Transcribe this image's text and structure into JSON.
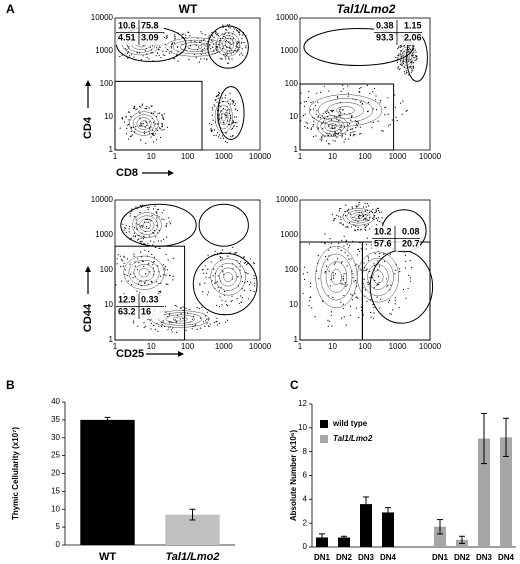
{
  "figure": {
    "panel_labels": [
      "A",
      "B",
      "C"
    ],
    "column_titles": [
      "WT",
      "Tal1/Lmo2"
    ],
    "flow_axis_labels": {
      "top_y": "CD4",
      "top_x": "CD8",
      "bottom_y": "CD44",
      "bottom_x": "CD25"
    },
    "flow_ticks": [
      1,
      10,
      100,
      1000,
      10000
    ],
    "flow_quadrants": [
      [
        10.6,
        75.8,
        4.51,
        3.09
      ],
      [
        0.38,
        1.15,
        93.3,
        2.06
      ],
      [
        12.9,
        0.33,
        63.2,
        16
      ],
      [
        10.2,
        0.08,
        57.6,
        20.7
      ]
    ]
  },
  "chart_data": [
    {
      "type": "bar",
      "ylabel": "Thymic Cellularity (x10⁷)",
      "categories": [
        "WT",
        "Tal1/Lmo2"
      ],
      "values": [
        35,
        8.5
      ],
      "errors": [
        0.7,
        1.5
      ],
      "colors": [
        "#000000",
        "#c0c0c0"
      ],
      "ylim": [
        0,
        40
      ],
      "yticks": [
        0,
        5,
        10,
        15,
        20,
        25,
        30,
        35,
        40
      ]
    },
    {
      "type": "grouped-bar",
      "ylabel": "Absolute Number (x10⁶)",
      "categories": [
        "DN1",
        "DN2",
        "DN3",
        "DN4"
      ],
      "series": [
        {
          "name": "wild type",
          "color": "#000000",
          "values": [
            0.8,
            0.8,
            3.6,
            2.9
          ],
          "errors": [
            0.3,
            0.1,
            0.6,
            0.4
          ]
        },
        {
          "name": "Tal1/Lmo2",
          "color": "#a6a6a6",
          "values": [
            1.7,
            0.6,
            9.1,
            9.2
          ],
          "errors": [
            0.6,
            0.3,
            2.1,
            1.6
          ]
        }
      ],
      "ylim": [
        0,
        12
      ],
      "yticks": [
        0,
        2,
        4,
        6,
        8,
        10,
        12
      ],
      "legend": "upper left"
    }
  ]
}
